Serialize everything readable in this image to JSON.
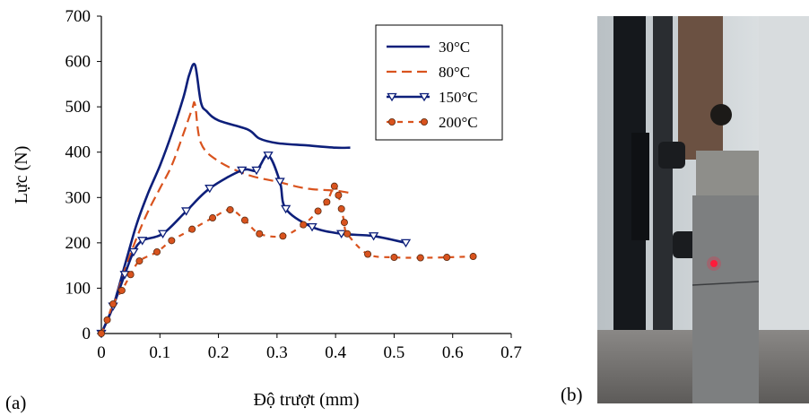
{
  "panel_a_label": "(a)",
  "panel_b_label": "(b)",
  "chart_data": {
    "type": "line",
    "title": "",
    "xlabel": "Độ trượt (mm)",
    "ylabel": "Lực (N)",
    "xlim": [
      0,
      0.7
    ],
    "ylim": [
      0,
      700
    ],
    "xticks": [
      "0",
      "0.1",
      "0.2",
      "0.3",
      "0.4",
      "0.5",
      "0.6",
      "0.7"
    ],
    "yticks": [
      "0",
      "100",
      "200",
      "300",
      "400",
      "500",
      "600",
      "700"
    ],
    "grid": false,
    "legend_position": "top-right",
    "series": [
      {
        "name": "30°C",
        "color": "#0d1f7a",
        "style": "solid",
        "marker": "none",
        "x": [
          0,
          0.02,
          0.04,
          0.06,
          0.08,
          0.1,
          0.12,
          0.14,
          0.15,
          0.16,
          0.17,
          0.18,
          0.2,
          0.25,
          0.27,
          0.3,
          0.35,
          0.4,
          0.425
        ],
        "y": [
          0,
          60,
          150,
          240,
          310,
          370,
          440,
          520,
          570,
          592,
          510,
          490,
          470,
          450,
          430,
          420,
          415,
          410,
          410
        ]
      },
      {
        "name": "80°C",
        "color": "#d9531e",
        "style": "dashed",
        "marker": "none",
        "x": [
          0,
          0.02,
          0.04,
          0.06,
          0.08,
          0.1,
          0.12,
          0.14,
          0.155,
          0.16,
          0.17,
          0.2,
          0.25,
          0.3,
          0.35,
          0.4,
          0.425
        ],
        "y": [
          0,
          60,
          140,
          210,
          270,
          320,
          370,
          440,
          495,
          505,
          420,
          380,
          350,
          335,
          320,
          315,
          310
        ]
      },
      {
        "name": "150°C",
        "color": "#0d1f7a",
        "style": "solid",
        "marker": "triangle-down",
        "x": [
          0,
          0.02,
          0.04,
          0.055,
          0.07,
          0.105,
          0.145,
          0.185,
          0.24,
          0.265,
          0.285,
          0.305,
          0.315,
          0.36,
          0.41,
          0.465,
          0.52
        ],
        "y": [
          0,
          60,
          130,
          180,
          205,
          220,
          270,
          320,
          360,
          360,
          393,
          335,
          275,
          235,
          220,
          215,
          200
        ]
      },
      {
        "name": "200°C",
        "color": "#d9531e",
        "style": "dashed",
        "marker": "circle",
        "x": [
          0,
          0.01,
          0.02,
          0.035,
          0.05,
          0.065,
          0.095,
          0.12,
          0.155,
          0.19,
          0.22,
          0.245,
          0.27,
          0.31,
          0.345,
          0.37,
          0.385,
          0.398,
          0.405,
          0.41,
          0.415,
          0.42,
          0.455,
          0.5,
          0.545,
          0.59,
          0.635
        ],
        "y": [
          0,
          30,
          65,
          95,
          130,
          160,
          180,
          205,
          230,
          255,
          273,
          250,
          220,
          215,
          240,
          270,
          290,
          325,
          305,
          275,
          245,
          220,
          175,
          168,
          167,
          168,
          170
        ]
      }
    ]
  },
  "photo_icon": "tensile-specimen-photo"
}
